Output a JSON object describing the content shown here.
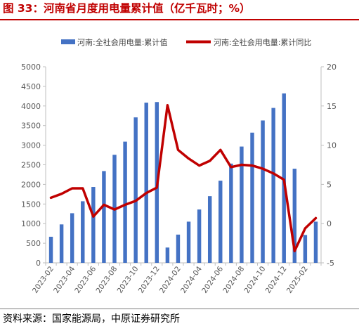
{
  "header": {
    "title": "图 33：河南省月度用电量累计值（亿千瓦时；%）"
  },
  "footer": {
    "source": "资料来源：国家能源局，中原证券研究所"
  },
  "chart_data": {
    "type": "bar",
    "title": "图 33：河南省月度用电量累计值（亿千瓦时；%）",
    "x": [
      "2023-02",
      "2023-03",
      "2023-04",
      "2023-05",
      "2023-06",
      "2023-07",
      "2023-08",
      "2023-09",
      "2023-10",
      "2023-11",
      "2023-12",
      "2024-01",
      "2024-02",
      "2024-03",
      "2024-04",
      "2024-05",
      "2024-06",
      "2024-07",
      "2024-08",
      "2024-09",
      "2024-10",
      "2024-11",
      "2024-12",
      "2025-01",
      "2025-02",
      "2025-03"
    ],
    "x_tick_labels": [
      "2023-02",
      "2023-04",
      "2023-06",
      "2023-08",
      "2023-10",
      "2023-12",
      "2024-02",
      "2024-04",
      "2024-06",
      "2024-08",
      "2024-10",
      "2024-12",
      "2025-02"
    ],
    "series": [
      {
        "name": "河南:全社会用电量:累计值",
        "type": "bar",
        "axis": "left",
        "color": "#4472c4",
        "values": [
          665,
          980,
          1265,
          1570,
          1935,
          2340,
          2755,
          3090,
          3710,
          4085,
          4100,
          390,
          720,
          1050,
          1360,
          1700,
          2095,
          2530,
          2965,
          3320,
          3630,
          3950,
          4320,
          2400,
          710,
          1050
        ]
      },
      {
        "name": "河南:全社会用电量:累计同比",
        "type": "line",
        "axis": "right",
        "color": "#c00000",
        "values": [
          3.3,
          3.8,
          4.5,
          4.5,
          0.9,
          2.4,
          1.8,
          2.4,
          2.9,
          3.9,
          4.6,
          15.1,
          9.4,
          8.3,
          7.4,
          8.0,
          9.4,
          7.2,
          7.5,
          7.4,
          7.0,
          6.4,
          5.6,
          -3.5,
          -0.6,
          0.7
        ]
      }
    ],
    "y_left": {
      "min": 0,
      "max": 5000,
      "step": 500,
      "ticks": [
        "0",
        "500",
        "1000",
        "1500",
        "2000",
        "2500",
        "3000",
        "3500",
        "4000",
        "4500",
        "5000"
      ]
    },
    "y_right": {
      "min": -5,
      "max": 20,
      "step": 5,
      "ticks": [
        "-5",
        "0",
        "5",
        "10",
        "15",
        "20"
      ]
    },
    "legend_position": "top",
    "grid": false
  }
}
